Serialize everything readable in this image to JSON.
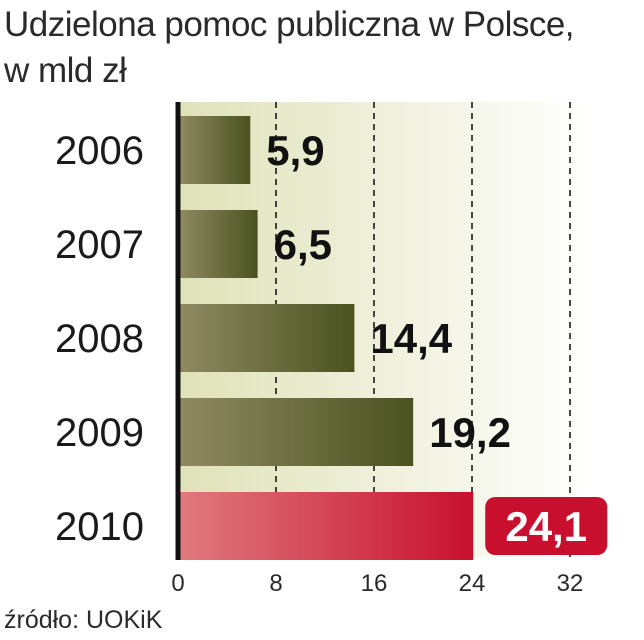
{
  "title_line1": "Udzielona pomoc publiczna w Polsce,",
  "title_line2": "w mld zł",
  "source": "źródło: UOKiK",
  "colors": {
    "bar_dark": "#4a5320",
    "bar_light": "#8f8a62",
    "highlight_dark": "#c8102e",
    "highlight_light": "#e07a7e",
    "background_left": "#dfe2b8",
    "background_right": "#ffffff"
  },
  "chart_data": {
    "type": "bar",
    "orientation": "horizontal",
    "title": "Udzielona pomoc publiczna w Polsce, w mld zł",
    "categories": [
      "2006",
      "2007",
      "2008",
      "2009",
      "2010"
    ],
    "values": [
      5.9,
      6.5,
      14.4,
      19.2,
      24.1
    ],
    "value_labels": [
      "5,9",
      "6,5",
      "14,4",
      "19,2",
      "24,1"
    ],
    "highlighted_category": "2010",
    "xlim": [
      0,
      32
    ],
    "xticks": [
      0,
      8,
      16,
      24,
      32
    ],
    "xlabel": "",
    "ylabel": "",
    "grid": "vertical dashed"
  }
}
